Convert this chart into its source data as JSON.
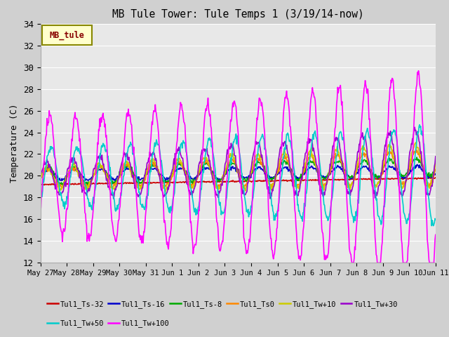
{
  "title": "MB Tule Tower: Tule Temps 1 (3/19/14-now)",
  "ylabel": "Temperature (C)",
  "ylim": [
    12,
    34
  ],
  "yticks": [
    12,
    14,
    16,
    18,
    20,
    22,
    24,
    26,
    28,
    30,
    32,
    34
  ],
  "xlabel_dates": [
    "May 27",
    "May 28",
    "May 29",
    "May 30",
    "May 31",
    "Jun 1",
    "Jun 2",
    "Jun 3",
    "Jun 4",
    "Jun 5",
    "Jun 6",
    "Jun 7",
    "Jun 8",
    "Jun 9",
    "Jun 10",
    "Jun 11"
  ],
  "n_days": 15,
  "series": {
    "Tul1_Ts-32": {
      "color": "#cc0000",
      "lw": 1.2
    },
    "Tul1_Ts-16": {
      "color": "#0000cc",
      "lw": 1.2
    },
    "Tul1_Ts-8": {
      "color": "#00aa00",
      "lw": 1.2
    },
    "Tul1_Ts0": {
      "color": "#ff8800",
      "lw": 1.2
    },
    "Tul1_Tw+10": {
      "color": "#cccc00",
      "lw": 1.2
    },
    "Tul1_Tw+30": {
      "color": "#9900cc",
      "lw": 1.2
    },
    "Tul1_Tw+50": {
      "color": "#00cccc",
      "lw": 1.2
    },
    "Tul1_Tw+100": {
      "color": "#ff00ff",
      "lw": 1.2
    }
  },
  "legend_box_facecolor": "#ffffcc",
  "legend_box_edgecolor": "#888800",
  "legend_text": "MB_tule",
  "legend_text_color": "#880000",
  "fig_facecolor": "#d0d0d0",
  "plot_facecolor": "#e8e8e8",
  "grid_color": "#ffffff"
}
